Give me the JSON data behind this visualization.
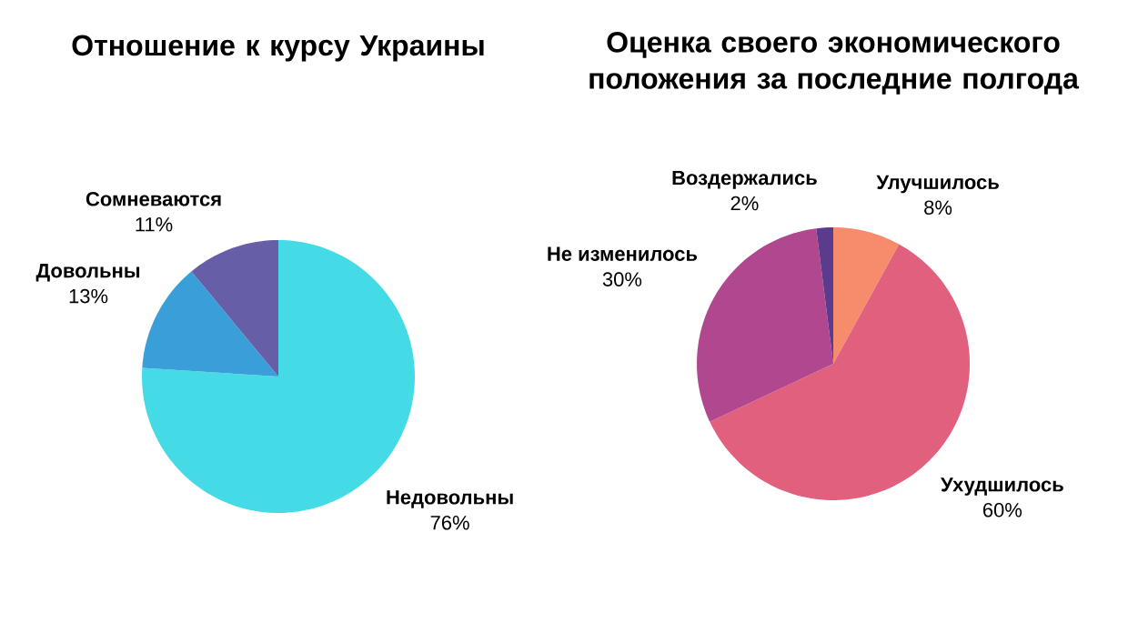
{
  "chart_data": [
    {
      "type": "pie",
      "title": "Отношение к курсу Украины",
      "categories": [
        "Недовольны",
        "Довольны",
        "Сомневаются"
      ],
      "values": [
        76,
        13,
        11
      ],
      "value_labels": [
        "76%",
        "13%",
        "11%"
      ],
      "colors": [
        "#45dbe6",
        "#3a9fd8",
        "#665fa8"
      ]
    },
    {
      "type": "pie",
      "title": "Оценка своего экономического положения за последние полгода",
      "categories": [
        "Улучшилось",
        "Ухудшилось",
        "Не изменилось",
        "Воздержались"
      ],
      "values": [
        8,
        60,
        30,
        2
      ],
      "value_labels": [
        "8%",
        "60%",
        "30%",
        "2%"
      ],
      "colors": [
        "#f78c6c",
        "#e0607e",
        "#b0478f",
        "#5b3b8c"
      ]
    }
  ]
}
